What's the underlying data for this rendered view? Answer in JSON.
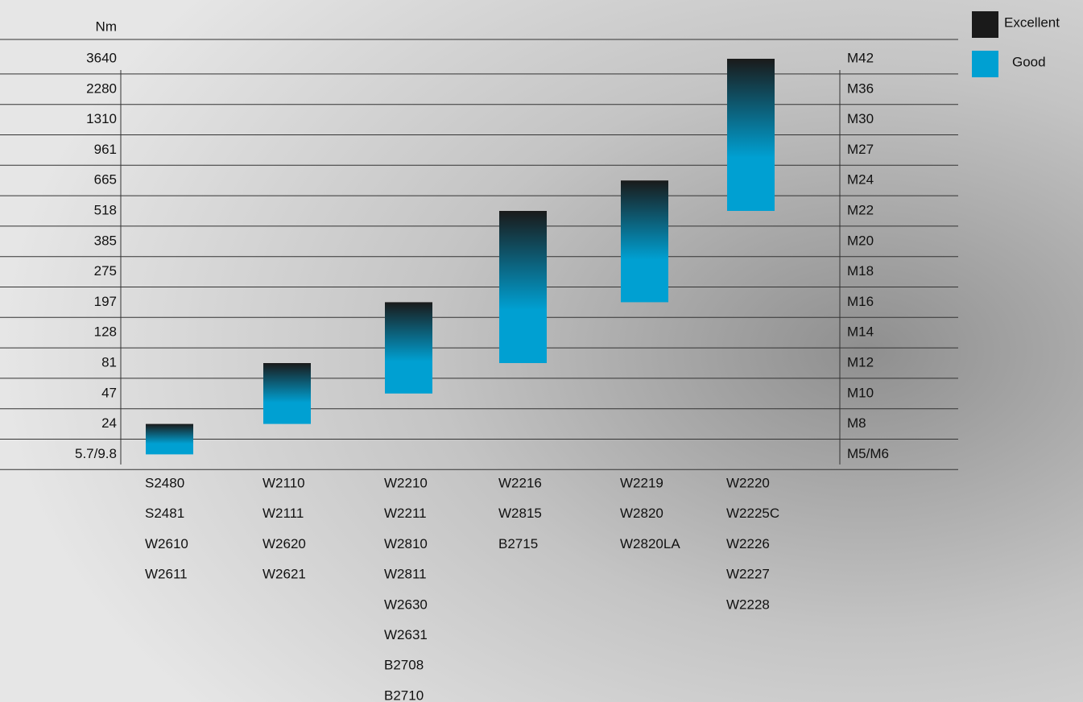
{
  "chart_data": {
    "type": "range-bar",
    "y_label": "Nm",
    "torque_labels": [
      "3640",
      "2280",
      "1310",
      "961",
      "665",
      "518",
      "385",
      "275",
      "197",
      "128",
      "81",
      "47",
      "24",
      "5.7/9.8"
    ],
    "bolt_sizes": [
      "M42",
      "M36",
      "M30",
      "M27",
      "M24",
      "M22",
      "M20",
      "M18",
      "M16",
      "M14",
      "M12",
      "M10",
      "M8",
      "M5/M6"
    ],
    "legend": [
      {
        "name": "Excellent",
        "color": "#1a1a1a"
      },
      {
        "name": "Good",
        "color": "#00a0d2"
      }
    ],
    "groups": [
      {
        "models": [
          "S2480",
          "S2481",
          "W2610",
          "W2611"
        ],
        "from": "5.7/9.8",
        "to": "24"
      },
      {
        "models": [
          "W2110",
          "W2111",
          "W2620",
          "W2621"
        ],
        "from": "24",
        "to": "81"
      },
      {
        "models": [
          "W2210",
          "W2211",
          "W2810",
          "W2811",
          "W2630",
          "W2631",
          "B2708",
          "B2710"
        ],
        "from": "47",
        "to": "197"
      },
      {
        "models": [
          "W2216",
          "W2815",
          "B2715"
        ],
        "from": "81",
        "to": "518"
      },
      {
        "models": [
          "W2219",
          "W2820",
          "W2820LA"
        ],
        "from": "197",
        "to": "665"
      },
      {
        "models": [
          "W2220",
          "W2225C",
          "W2226",
          "W2227",
          "W2228"
        ],
        "from": "518",
        "to": "3640"
      }
    ]
  }
}
